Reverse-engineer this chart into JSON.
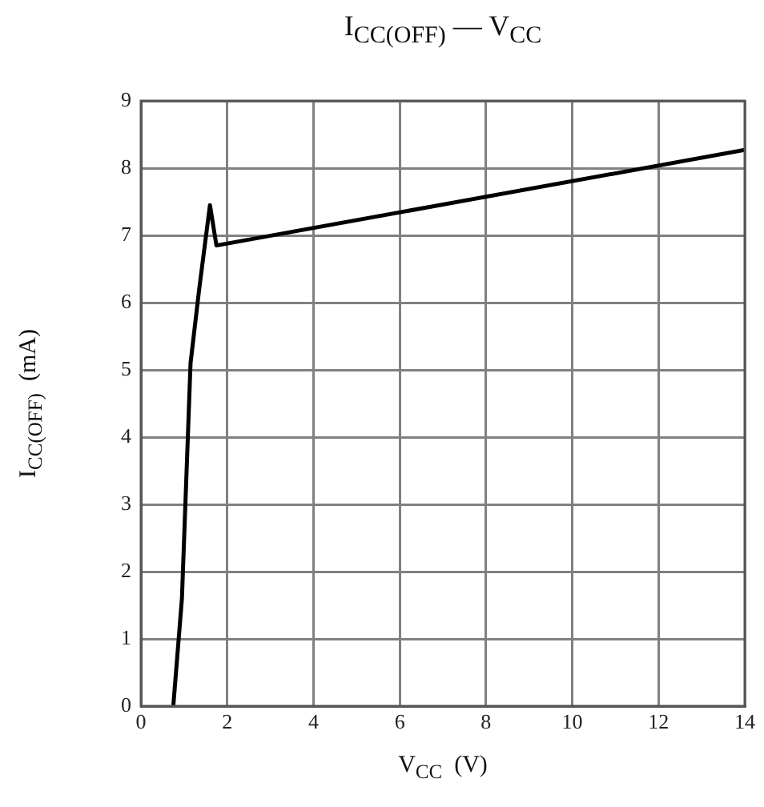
{
  "chart_data": {
    "type": "line",
    "title": "I$_{CC(OFF)}$ — V$_{CC}$",
    "xlabel": "V$_{CC}$  (V)",
    "ylabel": "I$_{CC(OFF)}$  (mA)",
    "series": [
      {
        "color": "#000000",
        "x": [
          0.75,
          0.95,
          1.15,
          1.35,
          1.6,
          1.75,
          14
        ],
        "values": [
          0,
          1.6,
          5.1,
          6.2,
          7.45,
          6.85,
          8.27
        ]
      }
    ],
    "xlim": [
      0,
      14
    ],
    "xticks": [
      0,
      2,
      4,
      6,
      8,
      10,
      12,
      14
    ],
    "ylim": [
      0,
      9
    ],
    "yticks": [
      0,
      1,
      2,
      3,
      4,
      5,
      6,
      7,
      8,
      9
    ],
    "grid": true,
    "legend": false,
    "marker": "none",
    "line_style": "solid"
  }
}
